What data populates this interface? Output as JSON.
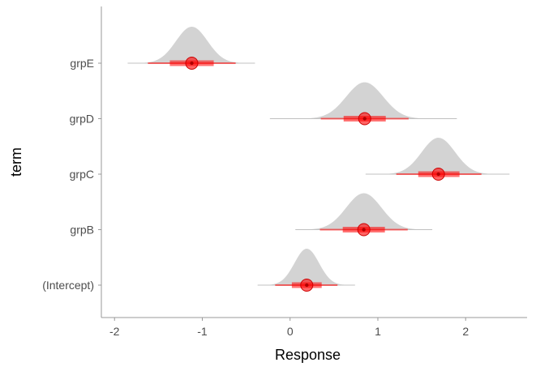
{
  "chart_data": {
    "type": "density-interval",
    "title": "",
    "xlabel": "Response",
    "ylabel": "term",
    "xlim": [
      -2.15,
      2.7
    ],
    "x_ticks": [
      -2,
      -1,
      0,
      1,
      2
    ],
    "x_tick_labels": [
      "-2",
      "-1",
      "0",
      "1",
      "2"
    ],
    "grid": false,
    "legend": "none",
    "categories": [
      "grpE",
      "grpD",
      "grpC",
      "grpB",
      "(Intercept)"
    ],
    "terms": [
      {
        "label": "grpE",
        "median": -1.12,
        "sd": 0.18,
        "range": [
          -1.85,
          -0.4
        ],
        "inner": [
          -1.37,
          -0.87
        ],
        "outer": [
          -1.62,
          -0.62
        ]
      },
      {
        "label": "grpD",
        "median": 0.85,
        "sd": 0.21,
        "range": [
          -0.23,
          1.9
        ],
        "inner": [
          0.61,
          1.09
        ],
        "outer": [
          0.35,
          1.35
        ]
      },
      {
        "label": "grpC",
        "median": 1.69,
        "sd": 0.19,
        "range": [
          0.86,
          2.5
        ],
        "inner": [
          1.46,
          1.93
        ],
        "outer": [
          1.21,
          2.18
        ]
      },
      {
        "label": "grpB",
        "median": 0.84,
        "sd": 0.2,
        "range": [
          0.06,
          1.62
        ],
        "inner": [
          0.6,
          1.08
        ],
        "outer": [
          0.34,
          1.34
        ]
      },
      {
        "label": "(Intercept)",
        "median": 0.19,
        "sd": 0.14,
        "range": [
          -0.37,
          0.74
        ],
        "inner": [
          0.02,
          0.36
        ],
        "outer": [
          -0.17,
          0.54
        ]
      }
    ],
    "colors": {
      "density": "#d3d3d3",
      "interval": "#ff0000",
      "axis": "#999999"
    }
  }
}
